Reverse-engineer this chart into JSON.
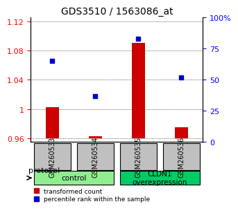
{
  "title": "GDS3510 / 1563086_at",
  "samples": [
    "GSM260533",
    "GSM260534",
    "GSM260535",
    "GSM260536"
  ],
  "transformed_counts": [
    1.003,
    0.963,
    1.09,
    0.975
  ],
  "percentile_ranks": [
    65,
    37,
    83,
    52
  ],
  "ylim_left": [
    0.955,
    1.125
  ],
  "ylim_right": [
    0,
    100
  ],
  "yticks_left": [
    0.96,
    1.0,
    1.04,
    1.08,
    1.12
  ],
  "ytick_labels_left": [
    "0.96",
    "1",
    "1.04",
    "1.08",
    "1.12"
  ],
  "yticks_right": [
    0,
    25,
    50,
    75,
    100
  ],
  "ytick_labels_right": [
    "0",
    "25",
    "50",
    "75",
    "100%"
  ],
  "bar_color": "#cc0000",
  "dot_color": "#0000cc",
  "baseline": 0.96,
  "groups": [
    {
      "label": "control",
      "samples": [
        0,
        1
      ],
      "color": "#90ee90"
    },
    {
      "label": "CLDN1\noverexpression",
      "samples": [
        2,
        3
      ],
      "color": "#00cc66"
    }
  ],
  "protocol_label": "protocol",
  "legend_bar_label": "transformed count",
  "legend_dot_label": "percentile rank within the sample",
  "background_color": "#ffffff",
  "plot_bg_color": "#ffffff",
  "grid_color": "#000000",
  "sample_box_color": "#c0c0c0"
}
